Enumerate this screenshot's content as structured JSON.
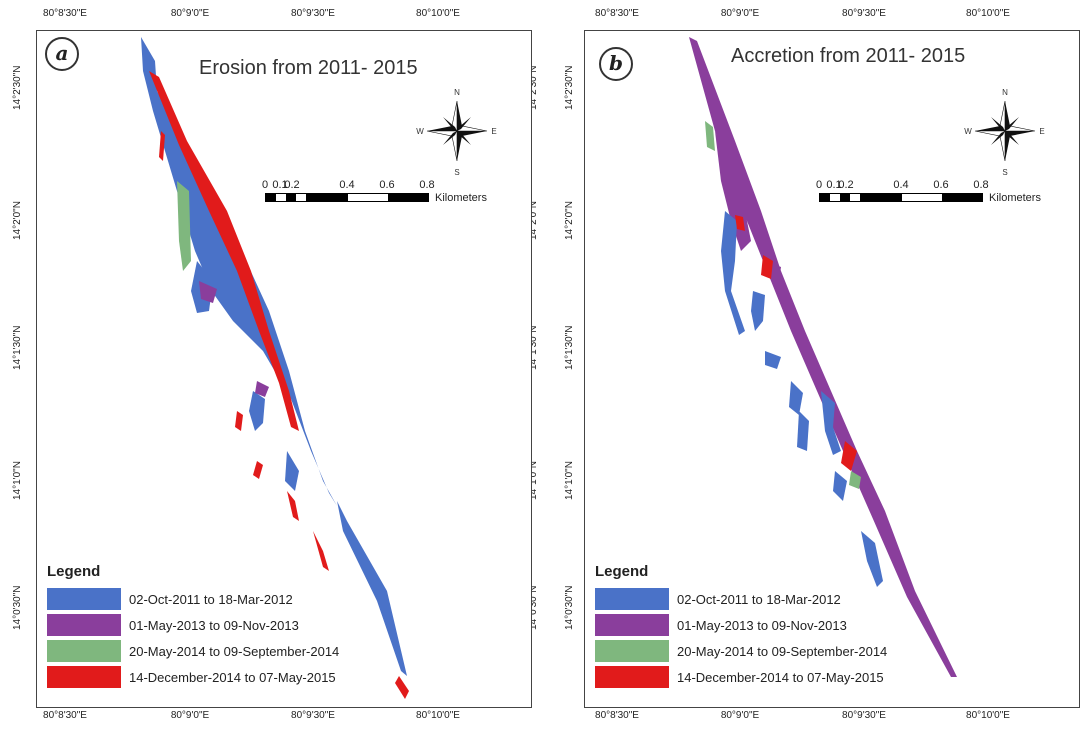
{
  "colors": {
    "period1": "#4a72c8",
    "period2": "#8a3e9c",
    "period3": "#7fb77e",
    "period4": "#e11b1b"
  },
  "panels": [
    {
      "letter": "a",
      "title": "Erosion from 2011- 2015",
      "top_ticks": [
        "80°8'30\"E",
        "80°9'0\"E",
        "80°9'30\"E",
        "80°10'0\"E"
      ],
      "bottom_ticks": [
        "80°8'30\"E",
        "80°9'0\"E",
        "80°9'30\"E",
        "80°10'0\"E"
      ],
      "left_ticks": [
        "14°2'30\"N",
        "14°2'0\"N",
        "14°1'30\"N",
        "14°1'0\"N",
        "14°0'30\"N"
      ],
      "right_ticks": [
        "14°2'30\"N",
        "14°2'0\"N",
        "14°1'30\"N",
        "14°1'0\"N",
        "14°0'30\"N"
      ]
    },
    {
      "letter": "b",
      "title": "Accretion from 2011- 2015",
      "top_ticks": [
        "80°8'30\"E",
        "80°9'0\"E",
        "80°9'30\"E",
        "80°10'0\"E"
      ],
      "bottom_ticks": [
        "80°8'30\"E",
        "80°9'0\"E",
        "80°9'30\"E",
        "80°10'0\"E"
      ],
      "left_ticks": [
        "14°2'30\"N",
        "14°2'0\"N",
        "14°1'30\"N",
        "14°1'0\"N",
        "14°0'30\"N"
      ],
      "right_ticks": [
        "14°2'30\"N",
        "14°2'0\"N",
        "14°1'30\"N",
        "14°1'0\"N",
        "14°0'30\"N"
      ]
    }
  ],
  "legend": {
    "title": "Legend",
    "items": [
      {
        "label": "02-Oct-2011 to 18-Mar-2012",
        "color": "#4a72c8"
      },
      {
        "label": "01-May-2013 to 09-Nov-2013",
        "color": "#8a3e9c"
      },
      {
        "label": "20-May-2014 to 09-September-2014",
        "color": "#7fb77e"
      },
      {
        "label": "14-December-2014 to 07-May-2015",
        "color": "#e11b1b"
      }
    ]
  },
  "scale": {
    "numbers": [
      "0",
      "0.1",
      "0.2",
      "0.4",
      "0.6",
      "0.8"
    ],
    "unit": "Kilometers"
  },
  "compass": {
    "n": "N",
    "s": "S",
    "e": "E",
    "w": "W"
  }
}
